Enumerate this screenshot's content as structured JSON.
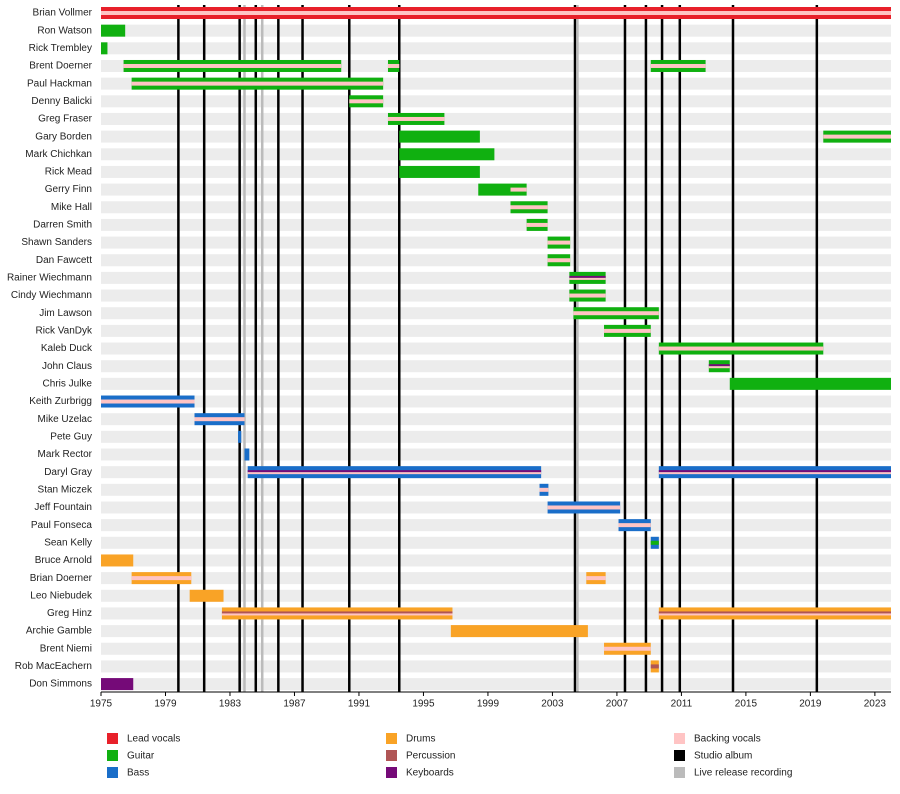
{
  "chart_data": {
    "type": "timeline",
    "xlim": [
      1975,
      2024
    ],
    "xticks": [
      1975,
      1979,
      1983,
      1987,
      1991,
      1995,
      1999,
      2003,
      2007,
      2011,
      2015,
      2019,
      2023
    ],
    "roles": [
      {
        "name": "Lead vocals",
        "color": "#e8202a"
      },
      {
        "name": "Guitar",
        "color": "#10b010"
      },
      {
        "name": "Bass",
        "color": "#1a6ec9"
      },
      {
        "name": "Drums",
        "color": "#f9a326"
      },
      {
        "name": "Percussion",
        "color": "#b05555"
      },
      {
        "name": "Keyboards",
        "color": "#750a78"
      },
      {
        "name": "Backing vocals",
        "color": "#ffc4c4"
      }
    ],
    "events": [
      {
        "name": "Studio album",
        "color": "#000000",
        "x": [
          1979.8,
          1981.4,
          1983.6,
          1984.6,
          1986.0,
          1987.5,
          1990.4,
          1993.5,
          2004.4,
          2007.5,
          2008.8,
          2009.8,
          2010.9,
          2014.2,
          2019.4
        ]
      },
      {
        "name": "Live release recording",
        "color": "#bbbbbb",
        "x": [
          1983.9,
          1985.0,
          2004.55
        ]
      }
    ],
    "members": [
      {
        "name": "Brian Vollmer",
        "periods": [
          {
            "start": 1975,
            "end": 2024,
            "roles": [
              "Lead vocals",
              "Backing vocals"
            ]
          }
        ]
      },
      {
        "name": "Ron Watson",
        "periods": [
          {
            "start": 1975,
            "end": 1976.5,
            "roles": [
              "Guitar"
            ]
          }
        ]
      },
      {
        "name": "Rick Trembley",
        "periods": [
          {
            "start": 1975,
            "end": 1975.4,
            "roles": [
              "Guitar"
            ]
          }
        ]
      },
      {
        "name": "Brent Doerner",
        "periods": [
          {
            "start": 1976.4,
            "end": 1989.9,
            "roles": [
              "Guitar",
              "Backing vocals"
            ]
          },
          {
            "start": 1992.8,
            "end": 1993.5,
            "roles": [
              "Guitar",
              "Backing vocals"
            ]
          },
          {
            "start": 2009.1,
            "end": 2012.5,
            "roles": [
              "Guitar",
              "Backing vocals"
            ]
          }
        ]
      },
      {
        "name": "Paul Hackman",
        "periods": [
          {
            "start": 1976.9,
            "end": 1992.5,
            "roles": [
              "Guitar",
              "Backing vocals"
            ]
          }
        ]
      },
      {
        "name": "Denny Balicki",
        "periods": [
          {
            "start": 1990.4,
            "end": 1992.5,
            "roles": [
              "Guitar",
              "Backing vocals"
            ]
          }
        ]
      },
      {
        "name": "Greg Fraser",
        "periods": [
          {
            "start": 1992.8,
            "end": 1996.3,
            "roles": [
              "Guitar",
              "Backing vocals"
            ]
          }
        ]
      },
      {
        "name": "Gary Borden",
        "periods": [
          {
            "start": 1993.5,
            "end": 1998.5,
            "roles": [
              "Guitar"
            ]
          },
          {
            "start": 2019.8,
            "end": 2024,
            "roles": [
              "Guitar",
              "Backing vocals"
            ]
          }
        ]
      },
      {
        "name": "Mark Chichkan",
        "periods": [
          {
            "start": 1993.5,
            "end": 1999.4,
            "roles": [
              "Guitar"
            ]
          }
        ]
      },
      {
        "name": "Rick Mead",
        "periods": [
          {
            "start": 1993.5,
            "end": 1998.5,
            "roles": [
              "Guitar"
            ]
          }
        ]
      },
      {
        "name": "Gerry Finn",
        "periods": [
          {
            "start": 1998.4,
            "end": 2000.4,
            "roles": [
              "Guitar"
            ]
          },
          {
            "start": 2000.4,
            "end": 2001.4,
            "roles": [
              "Guitar",
              "Backing vocals"
            ]
          }
        ]
      },
      {
        "name": "Mike Hall",
        "periods": [
          {
            "start": 2000.4,
            "end": 2002.7,
            "roles": [
              "Guitar",
              "Backing vocals"
            ]
          }
        ]
      },
      {
        "name": "Darren Smith",
        "periods": [
          {
            "start": 2001.4,
            "end": 2002.7,
            "roles": [
              "Guitar",
              "Backing vocals"
            ]
          }
        ]
      },
      {
        "name": "Shawn Sanders",
        "periods": [
          {
            "start": 2002.7,
            "end": 2004.1,
            "roles": [
              "Guitar",
              "Backing vocals"
            ]
          }
        ]
      },
      {
        "name": "Dan Fawcett",
        "periods": [
          {
            "start": 2002.7,
            "end": 2004.1,
            "roles": [
              "Guitar",
              "Backing vocals"
            ]
          }
        ]
      },
      {
        "name": "Rainer Wiechmann",
        "periods": [
          {
            "start": 2004.05,
            "end": 2006.3,
            "roles": [
              "Guitar",
              "Keyboards",
              "Backing vocals"
            ]
          }
        ]
      },
      {
        "name": "Cindy Wiechmann",
        "periods": [
          {
            "start": 2004.05,
            "end": 2006.3,
            "roles": [
              "Guitar",
              "Backing vocals"
            ]
          }
        ]
      },
      {
        "name": "Jim Lawson",
        "periods": [
          {
            "start": 2004.3,
            "end": 2009.6,
            "roles": [
              "Guitar",
              "Backing vocals"
            ]
          }
        ]
      },
      {
        "name": "Rick VanDyk",
        "periods": [
          {
            "start": 2006.2,
            "end": 2009.1,
            "roles": [
              "Guitar",
              "Backing vocals"
            ]
          }
        ]
      },
      {
        "name": "Kaleb Duck",
        "periods": [
          {
            "start": 2009.6,
            "end": 2019.8,
            "roles": [
              "Guitar",
              "Backing vocals"
            ]
          }
        ]
      },
      {
        "name": "John Claus",
        "periods": [
          {
            "start": 2012.7,
            "end": 2014.0,
            "roles": [
              "Guitar",
              "Keyboards",
              "Backing vocals"
            ]
          }
        ]
      },
      {
        "name": "Chris Julke",
        "periods": [
          {
            "start": 2014.0,
            "end": 2024,
            "roles": [
              "Guitar"
            ]
          }
        ]
      },
      {
        "name": "Keith Zurbrigg",
        "periods": [
          {
            "start": 1975,
            "end": 1980.8,
            "roles": [
              "Bass",
              "Backing vocals"
            ]
          }
        ]
      },
      {
        "name": "Mike Uzelac",
        "periods": [
          {
            "start": 1980.8,
            "end": 1983.9,
            "roles": [
              "Bass",
              "Backing vocals"
            ]
          }
        ]
      },
      {
        "name": "Pete Guy",
        "periods": [
          {
            "start": 1983.5,
            "end": 1983.7,
            "roles": [
              "Bass"
            ]
          }
        ]
      },
      {
        "name": "Mark Rector",
        "periods": [
          {
            "start": 1983.9,
            "end": 1984.2,
            "roles": [
              "Bass"
            ]
          }
        ]
      },
      {
        "name": "Daryl Gray",
        "periods": [
          {
            "start": 1984.1,
            "end": 2002.3,
            "roles": [
              "Bass",
              "Keyboards",
              "Backing vocals"
            ]
          },
          {
            "start": 2009.6,
            "end": 2024,
            "roles": [
              "Bass",
              "Keyboards",
              "Backing vocals"
            ]
          }
        ]
      },
      {
        "name": "Stan Miczek",
        "periods": [
          {
            "start": 2002.2,
            "end": 2002.75,
            "roles": [
              "Bass",
              "Backing vocals"
            ]
          }
        ]
      },
      {
        "name": "Jeff Fountain",
        "periods": [
          {
            "start": 2002.7,
            "end": 2007.2,
            "roles": [
              "Bass",
              "Backing vocals"
            ]
          }
        ]
      },
      {
        "name": "Paul Fonseca",
        "periods": [
          {
            "start": 2007.1,
            "end": 2009.1,
            "roles": [
              "Bass",
              "Backing vocals"
            ]
          }
        ]
      },
      {
        "name": "Sean Kelly",
        "periods": [
          {
            "start": 2009.1,
            "end": 2009.6,
            "roles": [
              "Bass",
              "Guitar"
            ]
          }
        ]
      },
      {
        "name": "Bruce Arnold",
        "periods": [
          {
            "start": 1975,
            "end": 1977.0,
            "roles": [
              "Drums"
            ]
          }
        ]
      },
      {
        "name": "Brian Doerner",
        "periods": [
          {
            "start": 1976.9,
            "end": 1980.6,
            "roles": [
              "Drums",
              "Backing vocals"
            ]
          },
          {
            "start": 2005.1,
            "end": 2006.3,
            "roles": [
              "Drums",
              "Backing vocals"
            ]
          }
        ]
      },
      {
        "name": "Leo Niebudek",
        "periods": [
          {
            "start": 1980.5,
            "end": 1982.6,
            "roles": [
              "Drums"
            ]
          }
        ]
      },
      {
        "name": "Greg Hinz",
        "periods": [
          {
            "start": 1982.5,
            "end": 1996.8,
            "roles": [
              "Drums",
              "Percussion",
              "Backing vocals"
            ]
          },
          {
            "start": 2009.6,
            "end": 2024,
            "roles": [
              "Drums",
              "Percussion",
              "Backing vocals"
            ]
          }
        ]
      },
      {
        "name": "Archie Gamble",
        "periods": [
          {
            "start": 1996.7,
            "end": 2005.2,
            "roles": [
              "Drums"
            ]
          }
        ]
      },
      {
        "name": "Brent Niemi",
        "periods": [
          {
            "start": 2006.2,
            "end": 2009.1,
            "roles": [
              "Drums",
              "Backing vocals"
            ]
          }
        ]
      },
      {
        "name": "Rob MacEachern",
        "periods": [
          {
            "start": 2009.1,
            "end": 2009.6,
            "roles": [
              "Drums",
              "Percussion"
            ]
          }
        ]
      },
      {
        "name": "Don Simmons",
        "periods": [
          {
            "start": 1975,
            "end": 1977.0,
            "roles": [
              "Keyboards"
            ]
          }
        ]
      }
    ]
  }
}
